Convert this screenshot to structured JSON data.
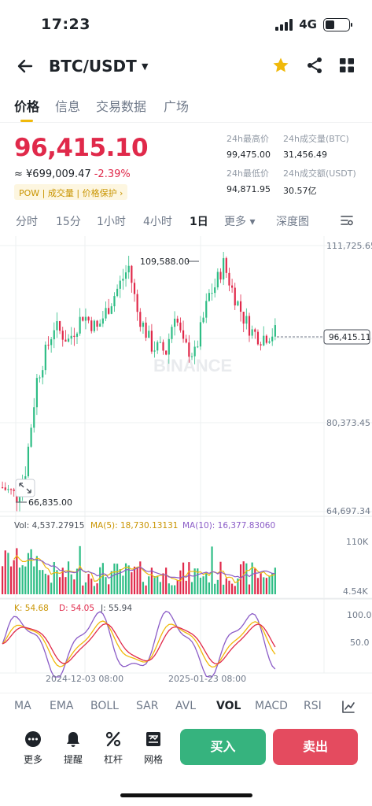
{
  "status": {
    "time": "17:23",
    "network": "4G"
  },
  "header": {
    "pair": "BTC/USDT"
  },
  "tabs": [
    "价格",
    "信息",
    "交易数据",
    "广场"
  ],
  "price": {
    "last": "96,415.10",
    "fiat": "≈ ¥699,009.47",
    "change": "-2.39%",
    "tags": "POW | 成交量 | 价格保护 ›"
  },
  "stats": [
    {
      "label": "24h最高价",
      "value": "99,475.00"
    },
    {
      "label": "24h成交量(BTC)",
      "value": "31,456.49"
    },
    {
      "label": "24h最低价",
      "value": "94,871.95"
    },
    {
      "label": "24h成交额(USDT)",
      "value": "30.57亿"
    }
  ],
  "timeframes": [
    "分时",
    "15分",
    "1小时",
    "4小时",
    "1日",
    "更多 ▾",
    "深度图"
  ],
  "chart_data": {
    "type": "candlestick",
    "price_axis_labels": [
      "111,725.65",
      "80,373.45",
      "64,697.34"
    ],
    "ylim": [
      64697.34,
      111725.65
    ],
    "high_marker": "109,588.00",
    "low_marker": "66,835.00",
    "last_price_label": "96,415.11",
    "watermark": "BINANCE",
    "volume_legend": {
      "vol": "Vol: 4,537.27915",
      "ma5": "MA(5): 18,730.13131",
      "ma10": "MA(10): 16,377.83060"
    },
    "volume_axis": [
      "110K",
      "4.54K"
    ],
    "kdj_legend": {
      "k": "K: 54.68",
      "d": "D: 54.05",
      "j": "J: 55.94"
    },
    "kdj_axis": [
      "100.0",
      "50.0"
    ],
    "date_labels": [
      "2024-12-03 08:00",
      "2025-01-23 08:00"
    ],
    "colors": {
      "up": "#2ebd85",
      "down": "#e0294a",
      "ma5": "#f0b90b",
      "ma10": "#8b5cc7",
      "k": "#f0b90b",
      "d": "#e0294a",
      "j": "#8b5cc7"
    }
  },
  "indicators": [
    "MA",
    "EMA",
    "BOLL",
    "SAR",
    "AVL",
    "VOL",
    "MACD",
    "RSI"
  ],
  "bottom": {
    "actions": [
      "更多",
      "提醒",
      "杠杆",
      "网格"
    ],
    "buy": "买入",
    "sell": "卖出"
  }
}
